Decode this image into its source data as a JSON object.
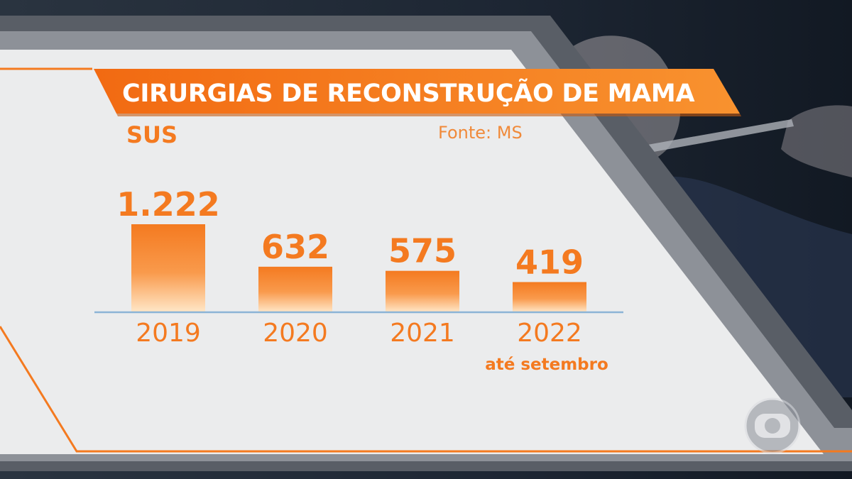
{
  "chart_data": {
    "type": "bar",
    "title": "CIRURGIAS DE RECONSTRUÇÃO DE MAMA",
    "subtitle": "SUS",
    "source": "Fonte: MS",
    "categories": [
      "2019",
      "2020",
      "2021",
      "2022"
    ],
    "category_notes": [
      "",
      "",
      "",
      "até setembro"
    ],
    "values": [
      1222,
      632,
      575,
      419
    ],
    "value_labels": [
      "1.222",
      "632",
      "575",
      "419"
    ],
    "xlabel": "",
    "ylabel": "",
    "ylim": [
      0,
      1222
    ],
    "grid": false,
    "legend": "none"
  },
  "colors": {
    "accent": "#f47a20",
    "accent_light": "#ffe7c8",
    "panel": "#ebeced",
    "background": "#1b2330",
    "baseline": "#8bb4d6"
  },
  "icons": {
    "broadcaster_logo": "globo-logo-icon"
  }
}
